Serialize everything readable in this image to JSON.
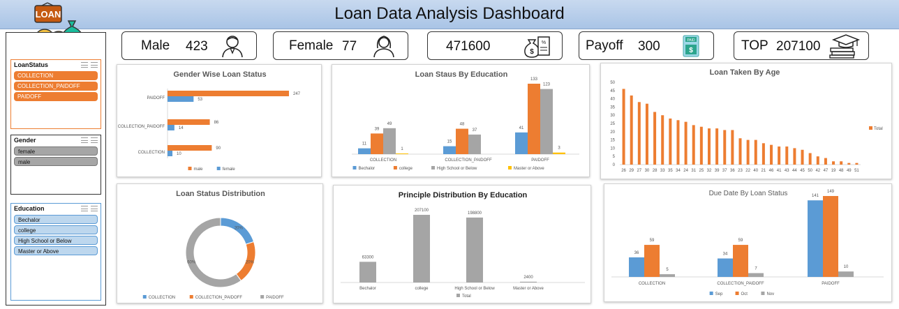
{
  "header": {
    "title": "Loan Data Analysis Dashboard",
    "logo_text": "LOAN",
    "logo_icon": "loan-coins-money-bag-icon"
  },
  "slicers": [
    {
      "title": "LoanStatus",
      "items": [
        "COLLECTION",
        "COLLECTION_PAIDOFF",
        "PAIDOFF"
      ],
      "color": "#ed7d31"
    },
    {
      "title": "Gender",
      "items": [
        "female",
        "male"
      ],
      "color": "#a6a6a6"
    },
    {
      "title": "Education",
      "items": [
        "Bechalor",
        "college",
        "High School or Below",
        "Master or Above"
      ],
      "color": "#bdd7ee"
    }
  ],
  "kpis": [
    {
      "label": "Male",
      "value": "423",
      "icon": "man-icon"
    },
    {
      "label": "Female",
      "value": "77",
      "icon": "woman-icon"
    },
    {
      "label": "",
      "value": "471600",
      "icon": "money-bag-receipt-icon"
    },
    {
      "label": "Payoff",
      "value": "300",
      "icon": "paid-phone-icon"
    },
    {
      "label": "TOP",
      "value": "207100",
      "icon": "graduation-books-icon"
    }
  ],
  "colors": {
    "blue": "#5b9bd5",
    "orange": "#ed7d31",
    "gray": "#a5a5a5",
    "yellow": "#ffc000"
  },
  "chart_data": [
    {
      "type": "bar",
      "orientation": "horizontal",
      "title": "Gender Wise Loan Status",
      "categories": [
        "PAIDOFF",
        "COLLECTION_PAIDOFF",
        "COLLECTION"
      ],
      "series": [
        {
          "name": "male",
          "values": [
            247,
            86,
            90
          ]
        },
        {
          "name": "female",
          "values": [
            53,
            14,
            10
          ]
        }
      ],
      "legend": "bottom"
    },
    {
      "type": "bar",
      "title": "Loan Staus By Education",
      "categories": [
        "COLLECTION",
        "COLLECTION_PAIDOFF",
        "PAIDOFF"
      ],
      "series": [
        {
          "name": "Bechalor",
          "values": [
            11,
            15,
            41
          ]
        },
        {
          "name": "college",
          "values": [
            39,
            48,
            133
          ]
        },
        {
          "name": "High School or Below",
          "values": [
            49,
            37,
            123
          ]
        },
        {
          "name": "Master or Above",
          "values": [
            1,
            null,
            3
          ]
        }
      ],
      "labels": [
        [
          "11",
          "39",
          "49",
          "1"
        ],
        [
          "15",
          "48",
          "37",
          ""
        ],
        [
          "41",
          "133",
          "123",
          "3"
        ]
      ],
      "legend": "bottom"
    },
    {
      "type": "bar",
      "title": "Loan Taken By Age",
      "categories": [
        "26",
        "29",
        "27",
        "30",
        "28",
        "33",
        "35",
        "34",
        "24",
        "31",
        "25",
        "32",
        "39",
        "37",
        "36",
        "23",
        "22",
        "40",
        "21",
        "46",
        "41",
        "43",
        "44",
        "45",
        "50",
        "42",
        "47",
        "19",
        "48",
        "49",
        "51"
      ],
      "series": [
        {
          "name": "Total",
          "values": [
            46,
            42,
            38,
            37,
            32,
            30,
            28,
            27,
            26,
            24,
            23,
            22,
            22,
            21,
            21,
            16,
            15,
            15,
            13,
            12,
            11,
            11,
            10,
            9,
            7,
            5,
            4,
            2,
            2,
            1,
            1
          ]
        }
      ],
      "ylim": [
        0,
        50
      ],
      "yticks": [
        0,
        5,
        10,
        15,
        20,
        25,
        30,
        35,
        40,
        45,
        50
      ],
      "legend": "right"
    },
    {
      "type": "pie",
      "donut": true,
      "title": "Loan Status Distribution",
      "categories": [
        "COLLECTION",
        "COLLECTION_PAIDOFF",
        "PAIDOFF"
      ],
      "values": [
        20,
        20,
        60
      ],
      "labels": [
        "20%",
        "20%",
        "60%"
      ],
      "legend": "bottom"
    },
    {
      "type": "bar",
      "title": "Principle Distribution  By Education",
      "categories": [
        "Bechalor",
        "college",
        "High School or Below",
        "Master or Above"
      ],
      "series": [
        {
          "name": "Total",
          "values": [
            63300,
            207100,
            198800,
            2400
          ]
        }
      ],
      "legend": "bottom"
    },
    {
      "type": "bar",
      "title": "Due Date By Loan Status",
      "categories": [
        "COLLECTION",
        "COLLECTION_PAIDOFF",
        "PAIDOFF"
      ],
      "series": [
        {
          "name": "Sep",
          "values": [
            36,
            34,
            141
          ]
        },
        {
          "name": "Oct",
          "values": [
            59,
            59,
            149
          ]
        },
        {
          "name": "Nov",
          "values": [
            5,
            7,
            10
          ]
        }
      ],
      "legend": "bottom"
    }
  ]
}
